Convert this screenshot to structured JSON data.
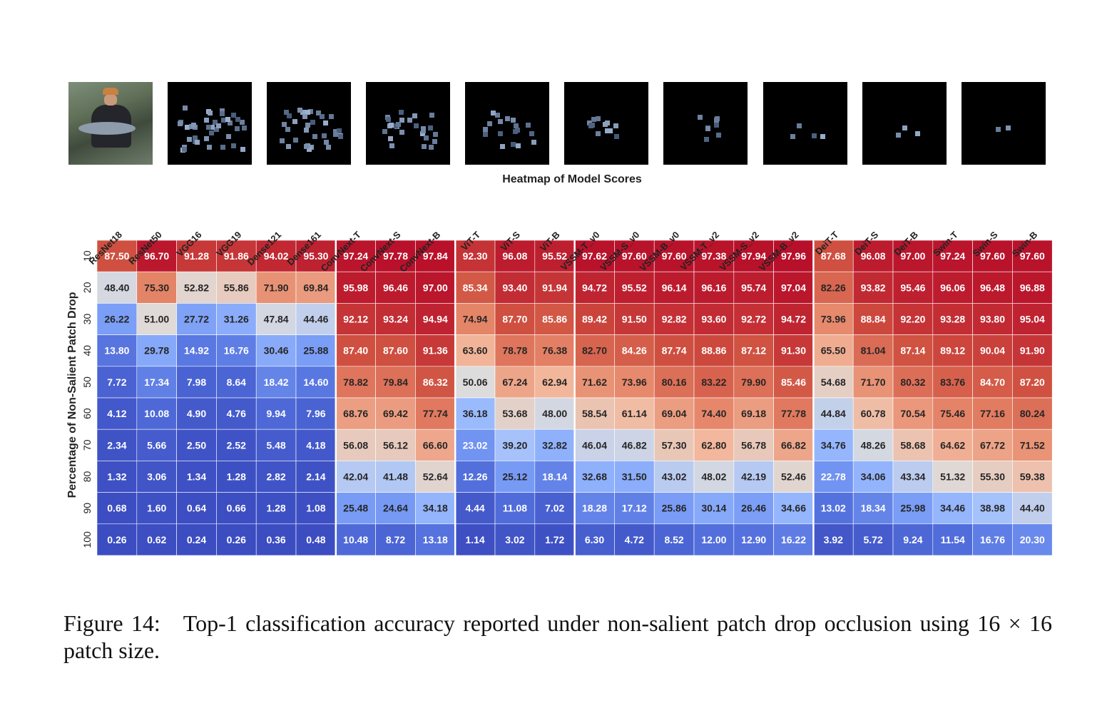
{
  "chart_data": {
    "type": "heatmap",
    "title": "Heatmap of Model Scores",
    "ylabel": "Percentage of Non-Salient Patch Drop",
    "xlabel": "",
    "columns": [
      "ResNet18",
      "ResNet50",
      "VGG16",
      "VGG19",
      "Dense121",
      "Dense161",
      "ConvNext-T",
      "ConvNext-S",
      "ConvNext-B",
      "ViT-T",
      "ViT-S",
      "ViT-B",
      "VSSM-T_v0",
      "VSSM-S_v0",
      "VSSM-B_v0",
      "VSSM-T_v2",
      "VSSM-S_v2",
      "VSSM-B_v2",
      "DeiT-T",
      "DeiT-S",
      "DeiT-B",
      "Swin-T",
      "Swin-S",
      "Swin-B"
    ],
    "rows": [
      "10",
      "20",
      "30",
      "40",
      "50",
      "60",
      "70",
      "80",
      "90",
      "100"
    ],
    "values": [
      [
        "87.50",
        "96.70",
        "91.28",
        "91.86",
        "94.02",
        "95.30",
        "97.24",
        "97.78",
        "97.84",
        "92.30",
        "96.08",
        "95.52",
        "97.62",
        "97.60",
        "97.60",
        "97.38",
        "97.94",
        "97.96",
        "87.68",
        "96.08",
        "97.00",
        "97.24",
        "97.60",
        "97.60"
      ],
      [
        "48.40",
        "75.30",
        "52.82",
        "55.86",
        "71.90",
        "69.84",
        "95.98",
        "96.46",
        "97.00",
        "85.34",
        "93.40",
        "91.94",
        "94.72",
        "95.52",
        "96.14",
        "96.16",
        "95.74",
        "97.04",
        "82.26",
        "93.82",
        "95.46",
        "96.06",
        "96.48",
        "96.88"
      ],
      [
        "26.22",
        "51.00",
        "27.72",
        "31.26",
        "47.84",
        "44.46",
        "92.12",
        "93.24",
        "94.94",
        "74.94",
        "87.70",
        "85.86",
        "89.42",
        "91.50",
        "92.82",
        "93.60",
        "92.72",
        "94.72",
        "73.96",
        "88.84",
        "92.20",
        "93.28",
        "93.80",
        "95.04"
      ],
      [
        "13.80",
        "29.78",
        "14.92",
        "16.76",
        "30.46",
        "25.88",
        "87.40",
        "87.60",
        "91.36",
        "63.60",
        "78.78",
        "76.38",
        "82.70",
        "84.26",
        "87.74",
        "88.86",
        "87.12",
        "91.30",
        "65.50",
        "81.04",
        "87.14",
        "89.12",
        "90.04",
        "91.90"
      ],
      [
        "7.72",
        "17.34",
        "7.98",
        "8.64",
        "18.42",
        "14.60",
        "78.82",
        "79.84",
        "86.32",
        "50.06",
        "67.24",
        "62.94",
        "71.62",
        "73.96",
        "80.16",
        "83.22",
        "79.90",
        "85.46",
        "54.68",
        "71.70",
        "80.32",
        "83.76",
        "84.70",
        "87.20"
      ],
      [
        "4.12",
        "10.08",
        "4.90",
        "4.76",
        "9.94",
        "7.96",
        "68.76",
        "69.42",
        "77.74",
        "36.18",
        "53.68",
        "48.00",
        "58.54",
        "61.14",
        "69.04",
        "74.40",
        "69.18",
        "77.78",
        "44.84",
        "60.78",
        "70.54",
        "75.46",
        "77.16",
        "80.24"
      ],
      [
        "2.34",
        "5.66",
        "2.50",
        "2.52",
        "5.48",
        "4.18",
        "56.08",
        "56.12",
        "66.60",
        "23.02",
        "39.20",
        "32.82",
        "46.04",
        "46.82",
        "57.30",
        "62.80",
        "56.78",
        "66.82",
        "34.76",
        "48.26",
        "58.68",
        "64.62",
        "67.72",
        "71.52"
      ],
      [
        "1.32",
        "3.06",
        "1.34",
        "1.28",
        "2.82",
        "2.14",
        "42.04",
        "41.48",
        "52.64",
        "12.26",
        "25.12",
        "18.14",
        "32.68",
        "31.50",
        "43.02",
        "48.02",
        "42.19",
        "52.46",
        "22.78",
        "34.06",
        "43.34",
        "51.32",
        "55.30",
        "59.38"
      ],
      [
        "0.68",
        "1.60",
        "0.64",
        "0.66",
        "1.28",
        "1.08",
        "25.48",
        "24.64",
        "34.18",
        "4.44",
        "11.08",
        "7.02",
        "18.28",
        "17.12",
        "25.86",
        "30.14",
        "26.46",
        "34.66",
        "13.02",
        "18.34",
        "25.98",
        "34.46",
        "38.98",
        "44.40"
      ],
      [
        "0.26",
        "0.62",
        "0.24",
        "0.26",
        "0.36",
        "0.48",
        "10.48",
        "8.72",
        "13.18",
        "1.14",
        "3.02",
        "1.72",
        "6.30",
        "4.72",
        "8.52",
        "12.00",
        "12.90",
        "16.22",
        "3.92",
        "5.72",
        "9.24",
        "11.54",
        "16.76",
        "20.30"
      ]
    ],
    "colormap": "coolwarm",
    "group_separators_after_columns": [
      6,
      9,
      12,
      18
    ],
    "colors": {
      "low": "#3b4cc0",
      "mid": "#dddcdc",
      "high": "#b40426"
    }
  },
  "caption": "Figure 14: Top-1 classification accuracy reported under non-salient patch drop occlusion using 16 × 16 patch size."
}
